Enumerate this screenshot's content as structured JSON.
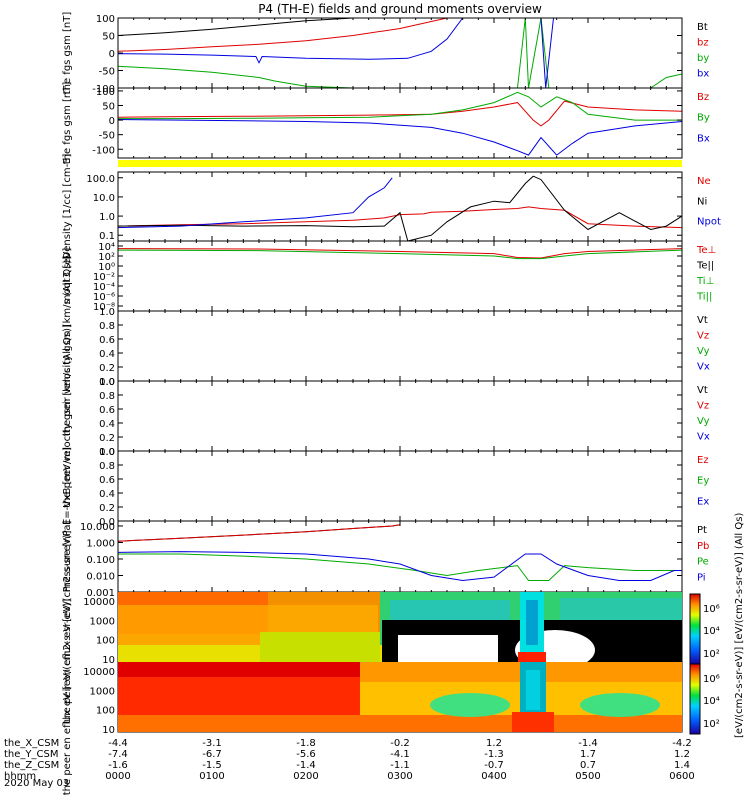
{
  "title": "P4 (TH-E) fields and ground moments overview",
  "date_label": "2020 May 03",
  "colors": {
    "black": "#000000",
    "red": "#e00000",
    "green": "#00dd00",
    "blue": "#0000e0",
    "yellow": "#ffff00",
    "bg": "#ffffff"
  },
  "chart_data": [
    {
      "type": "line",
      "ylabel": "the fgs gsm [nT]",
      "ylim": [
        -100,
        100
      ],
      "ytick_labels": [
        "100",
        "50",
        "0",
        "-50",
        "-100"
      ],
      "ytick_values": [
        100,
        50,
        0,
        -50,
        -100
      ],
      "legend": [
        {
          "name": "Bt",
          "color": "#000000"
        },
        {
          "name": "bz",
          "color": "#e00000"
        },
        {
          "name": "by",
          "color": "#00aa00"
        },
        {
          "name": "bx",
          "color": "#0000e0"
        }
      ],
      "series": [
        {
          "name": "Bt",
          "x": [
            0,
            30,
            60,
            90,
            120,
            150,
            170,
            180
          ],
          "y": [
            50,
            58,
            68,
            80,
            92,
            100,
            100,
            100
          ]
        },
        {
          "name": "bz",
          "x": [
            0,
            30,
            60,
            90,
            120,
            150,
            180,
            210,
            240,
            270,
            300,
            330,
            360
          ],
          "y": [
            5,
            10,
            18,
            25,
            35,
            50,
            70,
            100,
            100,
            100,
            100,
            100,
            100
          ]
        },
        {
          "name": "by",
          "x": [
            0,
            30,
            60,
            90,
            100,
            120,
            150,
            180,
            210,
            255,
            260,
            262,
            270,
            275,
            340,
            350,
            360
          ],
          "y": [
            -38,
            -45,
            -55,
            -70,
            -80,
            -95,
            -100,
            -100,
            -100,
            -100,
            100,
            -100,
            100,
            -100,
            -100,
            -70,
            -60
          ]
        },
        {
          "name": "bx",
          "x": [
            0,
            30,
            60,
            88,
            90,
            92,
            120,
            160,
            185,
            200,
            210,
            220,
            270,
            273,
            278,
            280
          ],
          "y": [
            -2,
            -3,
            -6,
            -10,
            -28,
            -10,
            -15,
            -18,
            -15,
            5,
            40,
            100,
            100,
            -100,
            100,
            100
          ]
        }
      ]
    },
    {
      "type": "line",
      "ylabel": "the fgs gsm [nT]",
      "ylim": [
        -130,
        110
      ],
      "ytick_labels": [
        "100",
        "50",
        "0",
        "-50",
        "-100"
      ],
      "ytick_values": [
        100,
        50,
        0,
        -50,
        -100
      ],
      "legend": [
        {
          "name": "Bz",
          "color": "#e00000"
        },
        {
          "name": "By",
          "color": "#00aa00"
        },
        {
          "name": "Bx",
          "color": "#0000e0"
        }
      ],
      "series": [
        {
          "name": "Bz",
          "x": [
            0,
            40,
            80,
            120,
            160,
            200,
            220,
            240,
            255,
            265,
            270,
            275,
            285,
            300,
            330,
            360
          ],
          "y": [
            10,
            12,
            13,
            15,
            17,
            20,
            30,
            45,
            60,
            0,
            -20,
            0,
            65,
            45,
            35,
            30
          ]
        },
        {
          "name": "By",
          "x": [
            0,
            40,
            80,
            120,
            160,
            200,
            220,
            240,
            255,
            262,
            270,
            280,
            290,
            300,
            330,
            360
          ],
          "y": [
            5,
            5,
            6,
            8,
            10,
            20,
            35,
            60,
            95,
            80,
            45,
            80,
            60,
            20,
            0,
            0
          ]
        },
        {
          "name": "Bx",
          "x": [
            0,
            40,
            80,
            120,
            160,
            200,
            220,
            240,
            255,
            262,
            270,
            280,
            290,
            300,
            330,
            360
          ],
          "y": [
            2,
            0,
            -2,
            -5,
            -10,
            -25,
            -45,
            -75,
            -105,
            -120,
            -60,
            -120,
            -80,
            -45,
            -20,
            -5
          ]
        }
      ]
    },
    {
      "type": "line",
      "ylabel": "Density [1/cc] [cm-3]",
      "ylim": [
        0.05,
        200
      ],
      "yscale": "log",
      "ytick_labels": [
        "100.0",
        "10.0",
        "1.0",
        "0.1"
      ],
      "ytick_values": [
        100,
        10,
        1,
        0.1
      ],
      "legend": [
        {
          "name": "Ne",
          "color": "#e00000"
        },
        {
          "name": "Ni",
          "color": "#000000"
        },
        {
          "name": "Npot",
          "color": "#0000e0"
        }
      ],
      "series": [
        {
          "name": "Ne",
          "x": [
            0,
            40,
            80,
            120,
            150,
            170,
            180,
            195,
            200,
            220,
            240,
            255,
            262,
            270,
            285,
            300,
            330,
            360
          ],
          "y": [
            0.3,
            0.35,
            0.4,
            0.5,
            0.6,
            0.8,
            1.2,
            1.3,
            1.6,
            1.8,
            2.2,
            2.5,
            3.0,
            2.5,
            2.0,
            0.4,
            0.3,
            0.25
          ]
        },
        {
          "name": "Ni",
          "x": [
            0,
            40,
            80,
            120,
            150,
            170,
            180,
            185,
            200,
            210,
            225,
            240,
            250,
            260,
            265,
            270,
            285,
            300,
            320,
            340,
            350,
            360
          ],
          "y": [
            0.3,
            0.33,
            0.3,
            0.32,
            0.28,
            0.3,
            1.5,
            0.05,
            0.1,
            0.5,
            3.0,
            6.0,
            5.0,
            50,
            120,
            80,
            2.0,
            0.2,
            1.5,
            0.2,
            0.3,
            1.0
          ]
        },
        {
          "name": "Npot",
          "x": [
            0,
            40,
            80,
            120,
            150,
            160,
            170,
            175
          ],
          "y": [
            0.25,
            0.3,
            0.5,
            0.8,
            1.5,
            10,
            30,
            100
          ]
        }
      ]
    },
    {
      "type": "line",
      "ylabel": "moqt3 [eV]",
      "yscale": "log",
      "ylim": [
        1e-09,
        100000.0
      ],
      "ytick_labels": [
        "10⁴",
        "10²",
        "10⁰",
        "10⁻²",
        "10⁻⁴",
        "10⁻⁶",
        "10⁻⁸"
      ],
      "ytick_values": [
        10000,
        100,
        1,
        0.01,
        0.0001,
        1e-06,
        1e-08
      ],
      "legend": [
        {
          "name": "Te⊥",
          "color": "#e00000"
        },
        {
          "name": "Te||",
          "color": "#000000"
        },
        {
          "name": "Ti⊥",
          "color": "#00aa00"
        },
        {
          "name": "Ti||",
          "color": "#00aa00"
        }
      ],
      "series": [
        {
          "name": "Te⊥",
          "x": [
            0,
            90,
            180,
            240,
            255,
            270,
            285,
            300,
            360
          ],
          "y": [
            3000,
            2500,
            800,
            300,
            50,
            40,
            300,
            800,
            3000
          ]
        },
        {
          "name": "Ti||",
          "x": [
            0,
            90,
            180,
            240,
            255,
            270,
            285,
            300,
            360
          ],
          "y": [
            1500,
            1200,
            300,
            100,
            30,
            30,
            100,
            300,
            1500
          ]
        }
      ]
    },
    {
      "type": "line",
      "ylabel": "the peir velocity gsm [km/s (All Qs)]",
      "ylim": [
        0,
        1
      ],
      "ytick_labels": [
        "1.0",
        "0.8",
        "0.6",
        "0.4",
        "0.2",
        "0.0"
      ],
      "ytick_values": [
        1.0,
        0.8,
        0.6,
        0.4,
        0.2,
        0.0
      ],
      "legend": [
        {
          "name": "Vt",
          "color": "#000000"
        },
        {
          "name": "Vz",
          "color": "#e00000"
        },
        {
          "name": "Vy",
          "color": "#00aa00"
        },
        {
          "name": "Vx",
          "color": "#0000e0"
        }
      ],
      "series": []
    },
    {
      "type": "line",
      "ylabel": "the peer velocity gsm [km/s (All Qs)]",
      "ylim": [
        0,
        1
      ],
      "ytick_labels": [
        "1.0",
        "0.8",
        "0.6",
        "0.4",
        "0.2",
        "0.0"
      ],
      "ytick_values": [
        1.0,
        0.8,
        0.6,
        0.4,
        0.2,
        0.0
      ],
      "legend": [
        {
          "name": "Vt",
          "color": "#000000"
        },
        {
          "name": "Vz",
          "color": "#e00000"
        },
        {
          "name": "Vy",
          "color": "#00aa00"
        },
        {
          "name": "Vx",
          "color": "#0000e0"
        }
      ],
      "series": []
    },
    {
      "type": "line",
      "ylabel": "E=-VxB [mV/m]",
      "ylim": [
        0,
        1
      ],
      "ytick_labels": [
        "1.0",
        "0.8",
        "0.6",
        "0.4",
        "0.2",
        "0.0"
      ],
      "ytick_values": [
        1.0,
        0.8,
        0.6,
        0.4,
        0.2,
        0.0
      ],
      "legend": [
        {
          "name": "Ez",
          "color": "#e00000"
        },
        {
          "name": "Ey",
          "color": "#00aa00"
        },
        {
          "name": "Ex",
          "color": "#0000e0"
        }
      ],
      "series": []
    },
    {
      "type": "line",
      "ylabel": "Pressure [nPa]",
      "yscale": "log",
      "ylim": [
        0.001,
        20
      ],
      "ytick_labels": [
        "10.000",
        "1.000",
        "0.100",
        "0.010",
        "0.001"
      ],
      "ytick_values": [
        10,
        1,
        0.1,
        0.01,
        0.001
      ],
      "legend": [
        {
          "name": "Pt",
          "color": "#000000"
        },
        {
          "name": "Pb",
          "color": "#e00000"
        },
        {
          "name": "Pe",
          "color": "#00aa00"
        },
        {
          "name": "Pi",
          "color": "#0000e0"
        }
      ],
      "series": [
        {
          "name": "Pt",
          "x": [
            0,
            40,
            80,
            120,
            150,
            175,
            180
          ],
          "y": [
            1.2,
            1.8,
            2.8,
            4.5,
            7.0,
            10.0,
            12.0
          ]
        },
        {
          "name": "Pb",
          "x": [
            0,
            40,
            80,
            120,
            150,
            175,
            180
          ],
          "y": [
            1.2,
            1.8,
            2.8,
            4.5,
            7.0,
            10.0,
            12.0
          ]
        },
        {
          "name": "Pe",
          "x": [
            0,
            40,
            80,
            120,
            160,
            190,
            210,
            230,
            245,
            255,
            262,
            275,
            285,
            300,
            330,
            350,
            360
          ],
          "y": [
            0.2,
            0.2,
            0.15,
            0.1,
            0.05,
            0.02,
            0.01,
            0.02,
            0.03,
            0.04,
            0.005,
            0.005,
            0.04,
            0.03,
            0.02,
            0.02,
            0.02
          ]
        },
        {
          "name": "Pi",
          "x": [
            0,
            40,
            80,
            120,
            160,
            180,
            200,
            220,
            240,
            260,
            270,
            280,
            300,
            320,
            340,
            355,
            360
          ],
          "y": [
            0.25,
            0.28,
            0.25,
            0.2,
            0.1,
            0.05,
            0.01,
            0.005,
            0.008,
            0.2,
            0.2,
            0.05,
            0.01,
            0.005,
            0.005,
            0.02,
            0.02
          ]
        }
      ]
    },
    {
      "type": "heatmap",
      "ylabel": "the peir en eflux eV [eV/(cm2-s-sr-eV)]",
      "yscale": "log",
      "ylim": [
        7,
        30000
      ],
      "ytick_labels": [
        "10000",
        "1000",
        "100",
        "10"
      ],
      "ytick_values": [
        10000,
        1000,
        100,
        10
      ]
    },
    {
      "type": "heatmap",
      "ylabel": "the peer en eflux eV [eV/(cm2-s-sr-eV)]",
      "yscale": "log",
      "ylim": [
        7,
        30000
      ],
      "ytick_labels": [
        "10000",
        "1000",
        "100",
        "10"
      ],
      "ytick_values": [
        10000,
        1000,
        100,
        10
      ]
    }
  ],
  "colorbar": {
    "label": "[eV/(cm2-s-sr-eV)] [eV/(cm2-s-sr-eV)] (All Qs)",
    "tick_labels": [
      "10⁶",
      "10⁴",
      "10²"
    ],
    "tick_labels_panel2": [
      "10⁶",
      "10⁴",
      "10²"
    ]
  },
  "xaxis": {
    "range_minutes": [
      0,
      360
    ],
    "tick_minutes": [
      0,
      60,
      120,
      180,
      240,
      300,
      360
    ],
    "rows": [
      {
        "label": "the_X_CSM",
        "values": [
          "-4.4",
          "-3.1",
          "-1.8",
          "-0.2",
          "1.2",
          "-1.4",
          "-4.2"
        ]
      },
      {
        "label": "the_Y_CSM",
        "values": [
          "-7.4",
          "-6.7",
          "-5.6",
          "-4.1",
          "-1.3",
          "1.7",
          "1.2"
        ]
      },
      {
        "label": "the_Z_CSM",
        "values": [
          "-1.6",
          "-1.5",
          "-1.4",
          "-1.1",
          "-0.7",
          "0.7",
          "1.4"
        ]
      },
      {
        "label": "hhmm",
        "values": [
          "0000",
          "0100",
          "0200",
          "0300",
          "0400",
          "0500",
          "0600"
        ]
      }
    ]
  }
}
